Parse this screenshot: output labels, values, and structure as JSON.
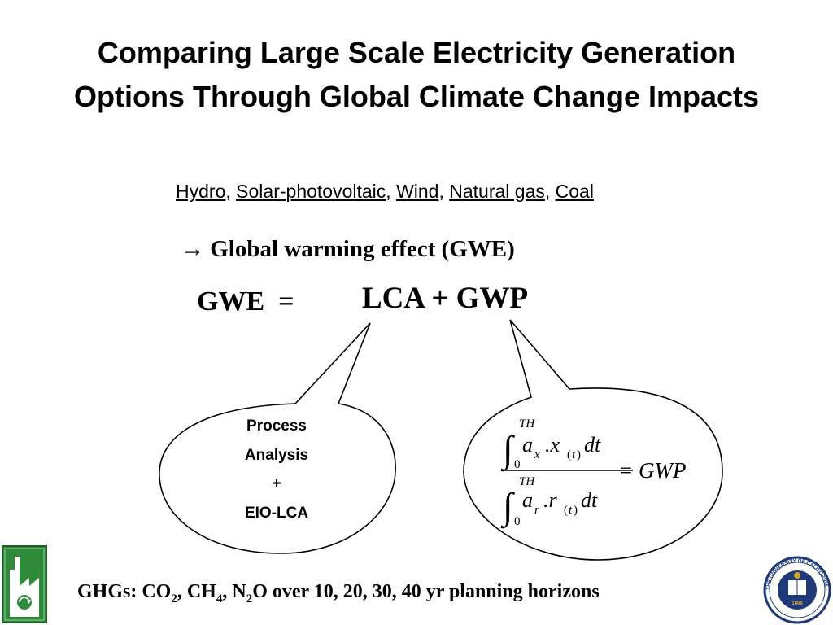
{
  "slide": {
    "title_line1": "Comparing Large Scale Electricity Generation",
    "title_line2": "Options Through Global Climate Change Impacts",
    "options": {
      "hydro": "Hydro",
      "solar": "Solar-photovoltaic",
      "wind": "Wind",
      "gas": "Natural gas",
      "coal": "Coal",
      "separator": ", "
    },
    "gwe_line": "→ Global warming effect (GWE)",
    "equation_left": "GWE  =",
    "equation_right": "LCA + GWP",
    "process_box": {
      "line1": "Process",
      "line2": "Analysis",
      "line3": "+",
      "line4": "EIO-LCA"
    },
    "formula": {
      "upper_limit": "TH",
      "lower_limit": "0",
      "numerator_integrand_a": "a",
      "numerator_sub_a": "x",
      "numerator_dot": ".x",
      "numerator_sub_t": "t",
      "numerator_dt": "dt",
      "denominator_integrand_a": "a",
      "denominator_sub_a": "r",
      "denominator_dot": ".r",
      "denominator_sub_t": "t",
      "denominator_dt": "dt",
      "result": "= GWP"
    },
    "footer": {
      "prefix": "GHGs: CO",
      "co2_sub": "2",
      "ch4_pre": ", CH",
      "ch4_sub": "4",
      "n2o_pre": ", N",
      "n2o_sub": "2",
      "suffix": "O over 10, 20, 30, 40 yr planning horizons"
    },
    "logo_right_text": "THE UNIVERSITY OF CALIFORNIA · BERKELEY",
    "logo_right_year": "1868",
    "colors": {
      "logo_green": "#2e8b3a",
      "seal_blue": "#1f3a7a",
      "seal_gold": "#d9a521"
    }
  }
}
